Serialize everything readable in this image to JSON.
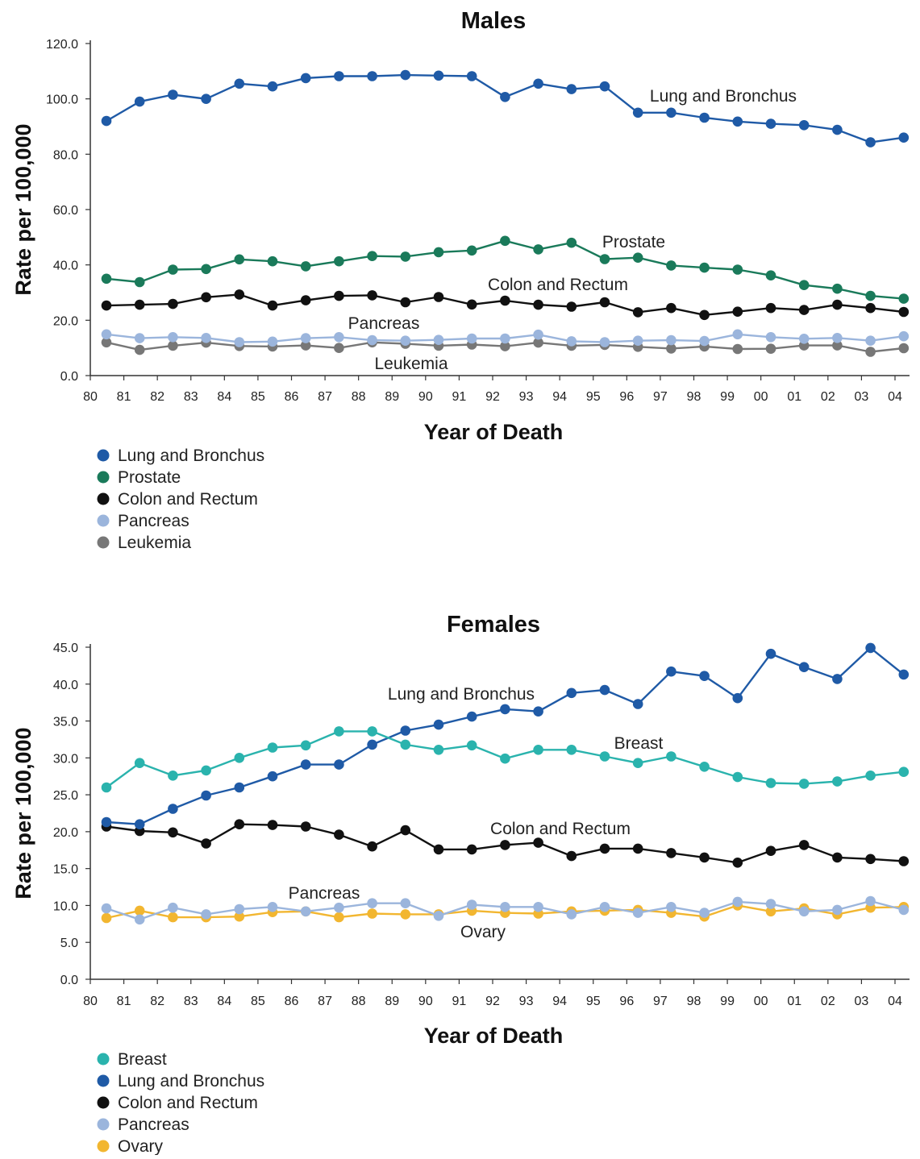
{
  "chart_data": [
    {
      "type": "line",
      "title": "Males",
      "xlabel": "Year of Death",
      "ylabel": "Rate per 100,000",
      "x_ticks": [
        "80",
        "81",
        "82",
        "83",
        "84",
        "85",
        "86",
        "87",
        "88",
        "89",
        "90",
        "91",
        "92",
        "93",
        "94",
        "95",
        "96",
        "97",
        "98",
        "99",
        "00",
        "01",
        "02",
        "03",
        "04"
      ],
      "y_ticks": [
        "0.0",
        "20.0",
        "40.0",
        "60.0",
        "80.0",
        "100.0",
        "120.0"
      ],
      "ylim": [
        0,
        120
      ],
      "grid": false,
      "legend_position": "bottom-left",
      "x": [
        1980,
        1981,
        1982,
        1983,
        1984,
        1985,
        1986,
        1987,
        1988,
        1989,
        1990,
        1991,
        1992,
        1993,
        1994,
        1995,
        1996,
        1997,
        1998,
        1999,
        2000,
        2001,
        2002,
        2003,
        2004
      ],
      "series": [
        {
          "name": "Lung and Bronchus",
          "color": "#1f5aa6",
          "values": [
            92.0,
            99.0,
            101.5,
            100.0,
            105.5,
            104.5,
            107.5,
            108.2,
            108.2,
            108.6,
            108.4,
            108.2,
            100.7,
            105.5,
            103.5,
            104.5,
            95.0,
            95.0,
            93.2,
            91.8,
            91.0,
            90.5,
            88.8,
            84.3,
            86.0
          ]
        },
        {
          "name": "Prostate",
          "color": "#1a7a5a",
          "values": [
            35.0,
            33.8,
            38.3,
            38.5,
            42.0,
            41.3,
            39.5,
            41.3,
            43.2,
            43.0,
            44.6,
            45.2,
            48.7,
            45.6,
            48.0,
            42.1,
            42.6,
            39.8,
            39.0,
            38.3,
            36.2,
            32.7,
            31.4,
            28.8,
            27.8
          ]
        },
        {
          "name": "Colon and Rectum",
          "color": "#111111",
          "values": [
            25.3,
            25.6,
            25.9,
            28.3,
            29.3,
            25.3,
            27.2,
            28.8,
            29.0,
            26.5,
            28.4,
            25.7,
            27.1,
            25.6,
            24.9,
            26.5,
            22.9,
            24.4,
            21.9,
            23.1,
            24.4,
            23.7,
            25.6,
            24.4,
            23.0
          ]
        },
        {
          "name": "Pancreas",
          "color": "#9bb5dc",
          "values": [
            14.9,
            13.5,
            13.9,
            13.6,
            12.1,
            12.3,
            13.5,
            13.9,
            12.8,
            12.6,
            12.9,
            13.4,
            13.4,
            14.8,
            12.4,
            12.1,
            12.6,
            12.8,
            12.5,
            14.9,
            13.9,
            13.3,
            13.6,
            12.6,
            14.2
          ]
        },
        {
          "name": "Leukemia",
          "color": "#777777",
          "values": [
            12.0,
            9.3,
            10.8,
            11.9,
            10.7,
            10.5,
            10.9,
            10.0,
            12.0,
            11.5,
            10.8,
            11.2,
            10.6,
            11.9,
            10.8,
            11.1,
            10.4,
            9.8,
            10.5,
            9.6,
            9.7,
            10.9,
            10.9,
            8.6,
            9.9
          ]
        }
      ],
      "annotations": [
        "Lung and Bronchus",
        "Prostate",
        "Colon and Rectum",
        "Pancreas",
        "Leukemia"
      ],
      "legend": [
        "Lung and Bronchus",
        "Prostate",
        "Colon and Rectum",
        "Pancreas",
        "Leukemia"
      ]
    },
    {
      "type": "line",
      "title": "Females",
      "xlabel": "Year of Death",
      "ylabel": "Rate per 100,000",
      "x_ticks": [
        "80",
        "81",
        "82",
        "83",
        "84",
        "85",
        "86",
        "87",
        "88",
        "89",
        "90",
        "91",
        "92",
        "93",
        "94",
        "95",
        "96",
        "97",
        "98",
        "99",
        "00",
        "01",
        "02",
        "03",
        "04"
      ],
      "y_ticks": [
        "0.0",
        "5.0",
        "10.0",
        "15.0",
        "20.0",
        "25.0",
        "30.0",
        "35.0",
        "40.0",
        "45.0"
      ],
      "ylim": [
        0,
        45
      ],
      "grid": false,
      "legend_position": "bottom-left",
      "x": [
        1980,
        1981,
        1982,
        1983,
        1984,
        1985,
        1986,
        1987,
        1988,
        1989,
        1990,
        1991,
        1992,
        1993,
        1994,
        1995,
        1996,
        1997,
        1998,
        1999,
        2000,
        2001,
        2002,
        2003,
        2004
      ],
      "series": [
        {
          "name": "Breast",
          "color": "#2ab3ad",
          "values": [
            26.0,
            29.3,
            27.6,
            28.3,
            30.0,
            31.4,
            31.7,
            33.6,
            33.6,
            31.8,
            31.1,
            31.7,
            29.9,
            31.1,
            31.1,
            30.2,
            29.3,
            30.2,
            28.8,
            27.4,
            26.6,
            26.5,
            26.8,
            27.6,
            28.1
          ]
        },
        {
          "name": "Lung and Bronchus",
          "color": "#1f5aa6",
          "values": [
            21.3,
            21.0,
            23.1,
            24.9,
            26.0,
            27.5,
            29.1,
            29.1,
            31.8,
            33.7,
            34.5,
            35.6,
            36.6,
            36.3,
            38.8,
            39.2,
            37.3,
            41.7,
            41.1,
            38.1,
            44.1,
            42.3,
            40.7,
            44.9,
            41.3
          ]
        },
        {
          "name": "Colon and Rectum",
          "color": "#111111",
          "values": [
            20.7,
            20.1,
            19.9,
            18.4,
            21.0,
            20.9,
            20.7,
            19.6,
            18.0,
            20.2,
            17.6,
            17.6,
            18.2,
            18.5,
            16.7,
            17.7,
            17.7,
            17.1,
            16.5,
            15.8,
            17.4,
            18.2,
            16.5,
            16.3,
            16.0
          ]
        },
        {
          "name": "Pancreas",
          "color": "#9bb5dc",
          "values": [
            9.6,
            8.1,
            9.7,
            8.8,
            9.5,
            9.8,
            9.2,
            9.7,
            10.3,
            10.3,
            8.6,
            10.1,
            9.8,
            9.8,
            8.8,
            9.8,
            9.0,
            9.8,
            9.0,
            10.5,
            10.2,
            9.2,
            9.4,
            10.6,
            9.4
          ]
        },
        {
          "name": "Ovary",
          "color": "#f2b630",
          "values": [
            8.3,
            9.3,
            8.4,
            8.4,
            8.5,
            9.1,
            9.2,
            8.4,
            8.9,
            8.8,
            8.8,
            9.3,
            9.0,
            8.9,
            9.2,
            9.3,
            9.4,
            9.0,
            8.5,
            10.0,
            9.2,
            9.6,
            8.8,
            9.7,
            9.8
          ]
        }
      ],
      "annotations": [
        "Lung and Bronchus",
        "Breast",
        "Colon and Rectum",
        "Pancreas",
        "Ovary"
      ],
      "legend": [
        "Breast",
        "Lung and Bronchus",
        "Colon and Rectum",
        "Pancreas",
        "Ovary"
      ]
    }
  ]
}
